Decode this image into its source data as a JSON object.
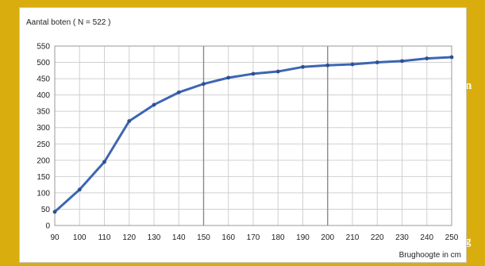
{
  "edge_text": {
    "top": "n",
    "bottom": "g"
  },
  "colors": {
    "background": "#d9ad0d",
    "line": "#3d66b3",
    "marker": "#2e4f91",
    "grid_minor": "#d0d0d0",
    "grid_major": "#8a8a8a"
  },
  "chart_data": {
    "type": "line",
    "title": "Aantal boten  ( N = 522 )",
    "xlabel": "Brughoogte in cm",
    "ylabel": "",
    "x": [
      90,
      100,
      110,
      120,
      130,
      140,
      150,
      160,
      170,
      180,
      190,
      200,
      210,
      220,
      230,
      240,
      250
    ],
    "series": [
      {
        "values": [
          42,
          110,
          195,
          320,
          370,
          408,
          434,
          453,
          465,
          472,
          486,
          491,
          494,
          500,
          504,
          512,
          516
        ]
      }
    ],
    "xlim": [
      90,
      250
    ],
    "ylim": [
      0,
      550
    ],
    "xticks": [
      90,
      100,
      110,
      120,
      130,
      140,
      150,
      160,
      170,
      180,
      190,
      200,
      210,
      220,
      230,
      240,
      250
    ],
    "yticks": [
      0,
      50,
      100,
      150,
      200,
      250,
      300,
      350,
      400,
      450,
      500,
      550
    ],
    "emphasized_x": [
      150,
      200
    ],
    "grid": true,
    "legend": "none"
  }
}
